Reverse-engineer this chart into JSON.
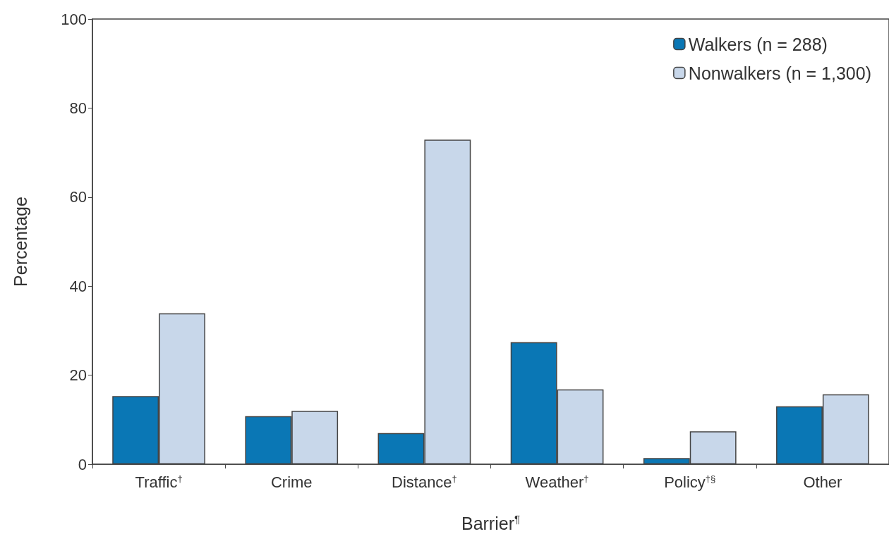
{
  "chart_data": {
    "type": "bar",
    "xlabel": "Barrier$^{¶}$",
    "ylabel": "Percentage",
    "categories": [
      "Traffic$^{†}$",
      "Crime",
      "Distance$^{†}$",
      "Weather$^{†}$",
      "Policy$^{†§}$",
      "Other"
    ],
    "series": [
      {
        "name": "Walkers (n = 288)",
        "color": "#0a77b5",
        "values": [
          15.3,
          10.8,
          7.0,
          27.4,
          1.4,
          13.0
        ]
      },
      {
        "name": "Nonwalkers (n = 1,300)",
        "color": "#c8d7ea",
        "values": [
          33.9,
          12.0,
          72.9,
          16.8,
          7.4,
          15.7
        ]
      }
    ],
    "ylim": [
      0,
      100
    ],
    "yticks": [
      0,
      20,
      40,
      60,
      80,
      100
    ],
    "grid": false,
    "legend": "top right"
  }
}
